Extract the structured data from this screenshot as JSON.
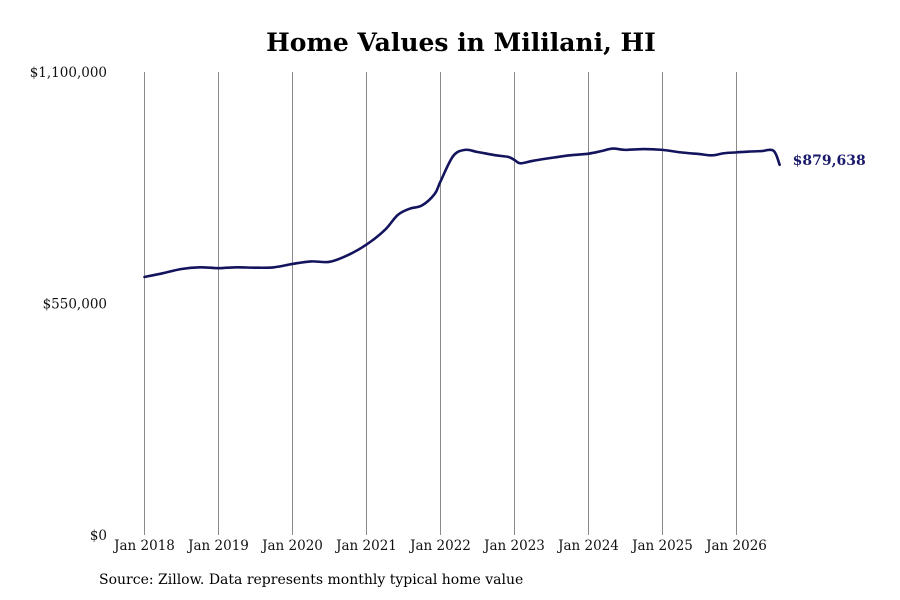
{
  "chart_data": {
    "type": "line",
    "title": "Home Values in Mililani, HI",
    "source": "Source: Zillow. Data represents monthly typical home value",
    "ylim": [
      0,
      1100000
    ],
    "yticks": [
      {
        "value": 0,
        "label": "$0"
      },
      {
        "value": 550000,
        "label": "$550,000"
      },
      {
        "value": 1100000,
        "label": "$1,100,000"
      }
    ],
    "xlim": [
      2018.0,
      2026.583
    ],
    "xticks": [
      {
        "value": 2018,
        "label": "Jan 2018"
      },
      {
        "value": 2019,
        "label": "Jan 2019"
      },
      {
        "value": 2020,
        "label": "Jan 2020"
      },
      {
        "value": 2021,
        "label": "Jan 2021"
      },
      {
        "value": 2022,
        "label": "Jan 2022"
      },
      {
        "value": 2023,
        "label": "Jan 2023"
      },
      {
        "value": 2024,
        "label": "Jan 2024"
      },
      {
        "value": 2025,
        "label": "Jan 2025"
      },
      {
        "value": 2026,
        "label": "Jan 2026"
      }
    ],
    "grid": {
      "vertical": true,
      "horizontal": false
    },
    "line_color": "#14145e",
    "end_label": "$879,638",
    "series": [
      {
        "x": [
          2018.0,
          2018.25,
          2018.5,
          2018.75,
          2019.0,
          2019.25,
          2019.5,
          2019.75,
          2020.0,
          2020.25,
          2020.5,
          2020.75,
          2021.0,
          2021.25,
          2021.42,
          2021.58,
          2021.75,
          2021.92,
          2022.0,
          2022.17,
          2022.33,
          2022.5,
          2022.75,
          2022.92,
          2023.0,
          2023.08,
          2023.25,
          2023.5,
          2023.75,
          2024.0,
          2024.17,
          2024.33,
          2024.5,
          2024.75,
          2025.0,
          2025.25,
          2025.5,
          2025.67,
          2025.83,
          2026.0,
          2026.17,
          2026.33,
          2026.5,
          2026.583
        ],
        "values": [
          613000,
          622000,
          632000,
          636000,
          634000,
          636000,
          635000,
          636000,
          644000,
          650000,
          649000,
          665000,
          690000,
          725000,
          760000,
          775000,
          783000,
          810000,
          840000,
          900000,
          915000,
          910000,
          902000,
          898000,
          891000,
          883000,
          889000,
          896000,
          902000,
          906000,
          912000,
          918000,
          915000,
          917000,
          915000,
          909000,
          905000,
          902000,
          907000,
          909000,
          911000,
          912000,
          913000,
          879638
        ]
      }
    ]
  }
}
